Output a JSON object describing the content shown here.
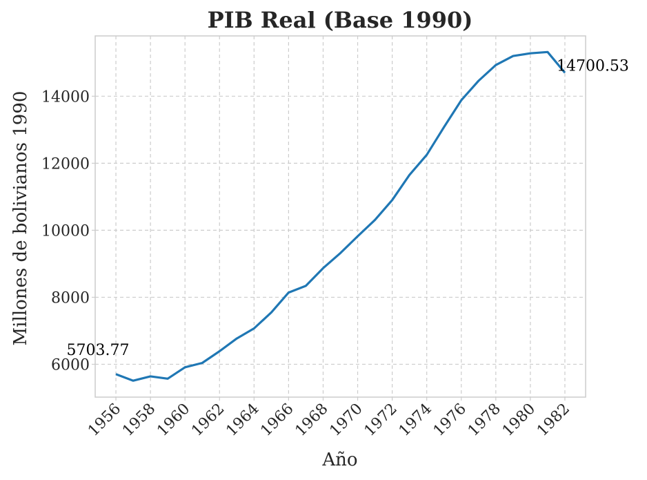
{
  "chart_data": {
    "type": "line",
    "title": "PIB Real (Base 1990)",
    "xlabel": "Año",
    "ylabel": "Millones de bolivianos 1990",
    "xlim": [
      1954.8,
      1983.2
    ],
    "ylim": [
      5020,
      15800
    ],
    "x_ticks": [
      1956,
      1958,
      1960,
      1962,
      1964,
      1966,
      1968,
      1970,
      1972,
      1974,
      1976,
      1978,
      1980,
      1982
    ],
    "y_ticks": [
      6000,
      8000,
      10000,
      12000,
      14000
    ],
    "grid": true,
    "line_color": "#1f77b4",
    "series": [
      {
        "x": [
          1956,
          1957,
          1958,
          1959,
          1960,
          1961,
          1962,
          1963,
          1964,
          1965,
          1966,
          1967,
          1968,
          1969,
          1970,
          1971,
          1972,
          1973,
          1974,
          1975,
          1976,
          1977,
          1978,
          1979,
          1980,
          1981,
          1982
        ],
        "values": [
          5703.77,
          5510,
          5640,
          5570,
          5910,
          6040,
          6390,
          6770,
          7070,
          7550,
          8140,
          8340,
          8870,
          9320,
          9820,
          10310,
          10900,
          11650,
          12250,
          13080,
          13880,
          14460,
          14930,
          15200,
          15280,
          15320,
          14700.53
        ]
      }
    ],
    "annotations": [
      {
        "x": 1956,
        "y": 5703.77,
        "text": "5703.77"
      },
      {
        "x": 1982,
        "y": 14700.53,
        "text": "14700.53"
      }
    ]
  }
}
